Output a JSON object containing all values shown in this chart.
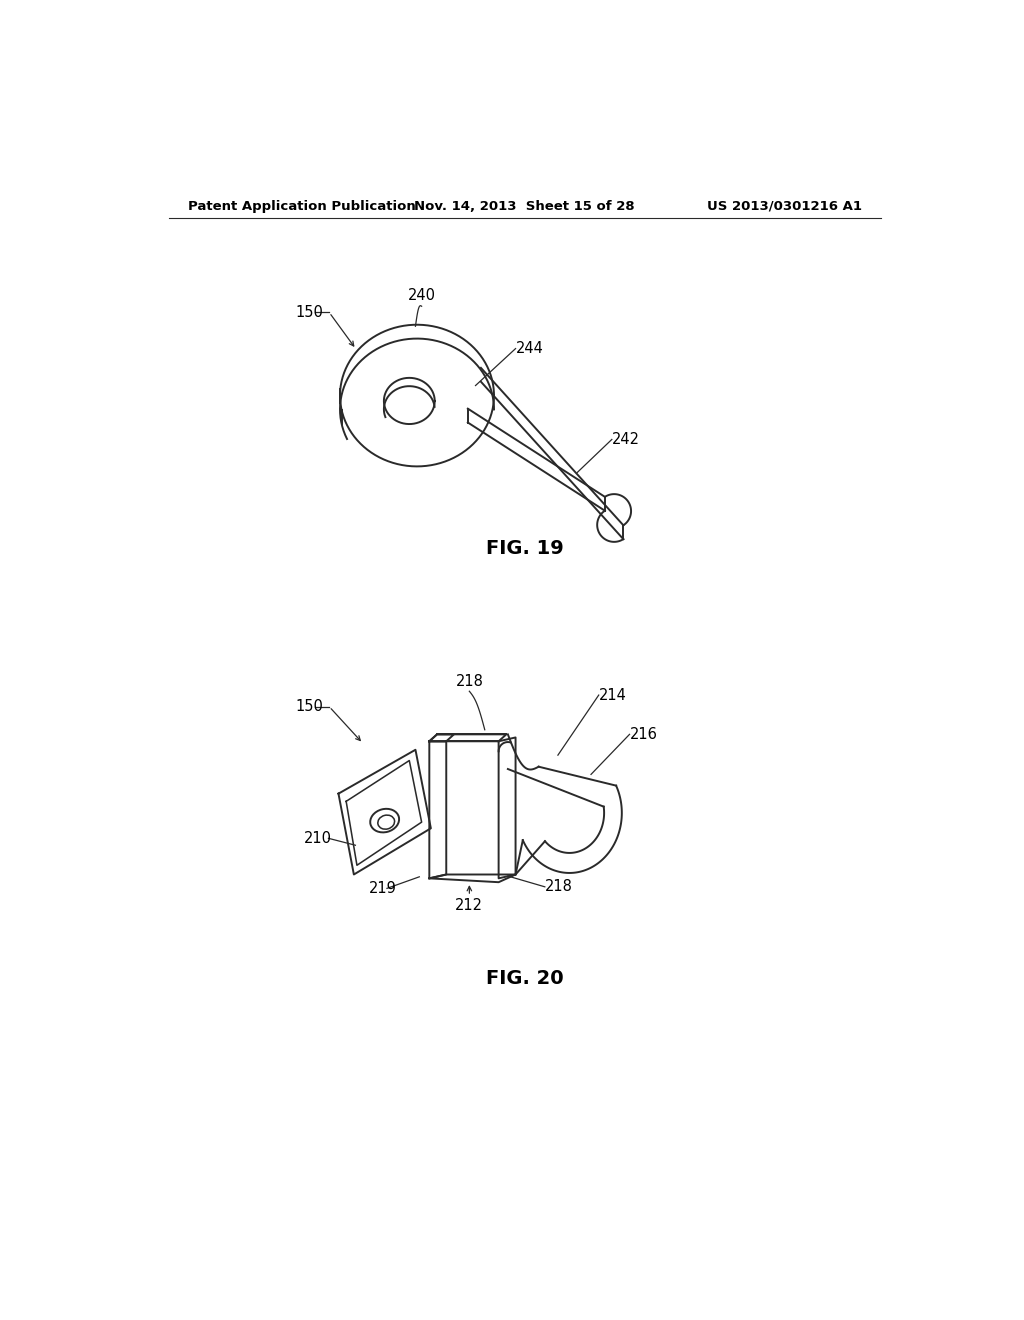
{
  "background_color": "#ffffff",
  "header_left": "Patent Application Publication",
  "header_mid": "Nov. 14, 2013  Sheet 15 of 28",
  "header_right": "US 2013/0301216 A1",
  "fig19_title": "FIG. 19",
  "fig20_title": "FIG. 20",
  "line_color": "#2a2a2a",
  "label_color": "#000000",
  "font_size_header": 9.5,
  "font_size_label": 10.5,
  "font_size_fig": 14
}
